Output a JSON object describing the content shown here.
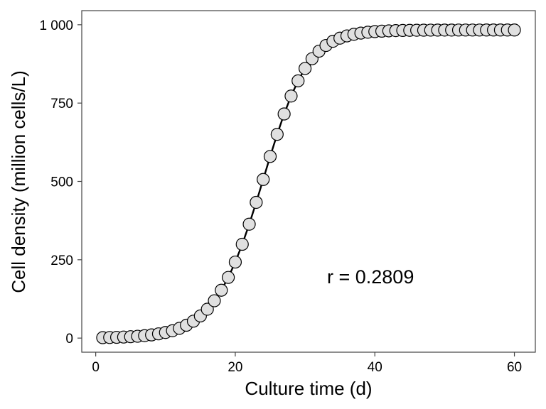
{
  "chart_data": {
    "type": "scatter",
    "xlabel": "Culture time (d)",
    "ylabel": "Cell density (million cells/L)",
    "xlim": [
      -2,
      63
    ],
    "ylim": [
      -45,
      1045
    ],
    "x_ticks": [
      0,
      20,
      40,
      60
    ],
    "y_ticks": [
      0,
      250,
      500,
      750,
      1000
    ],
    "x_tick_labels": [
      "0",
      "20",
      "40",
      "60"
    ],
    "y_tick_labels": [
      "0",
      "250",
      "500",
      "750",
      "1 000"
    ],
    "grid": false,
    "legend": "none",
    "annotation": "r = 0.2809",
    "colors": {
      "marker_fill": "#e0e0e0",
      "marker_edge": "#000000",
      "line": "#000000"
    },
    "series": [
      {
        "marker": "circle",
        "has_fit_line": true,
        "x": [
          1,
          2,
          3,
          4,
          5,
          6,
          7,
          8,
          9,
          10,
          11,
          12,
          13,
          14,
          15,
          16,
          17,
          18,
          19,
          20,
          21,
          22,
          23,
          24,
          25,
          26,
          27,
          28,
          29,
          30,
          31,
          32,
          33,
          34,
          35,
          36,
          37,
          38,
          39,
          40,
          41,
          42,
          43,
          44,
          45,
          46,
          47,
          48,
          49,
          50,
          51,
          52,
          53,
          54,
          55,
          56,
          57,
          58,
          59,
          60
        ],
        "y": [
          1.4,
          1.9,
          2.5,
          3.3,
          4.4,
          5.8,
          7.7,
          10.2,
          13.5,
          17.9,
          23.6,
          31.2,
          41.1,
          54.0,
          70.7,
          92.1,
          119.2,
          152.8,
          193.7,
          242.6,
          299.4,
          363.5,
          433.2,
          506.2,
          579.7,
          650.2,
          715.2,
          772.5,
          821.0,
          860.4,
          891.6,
          915.7,
          933.8,
          947.3,
          957.2,
          964.4,
          969.7,
          973.4,
          976.2,
          978.1,
          979.5,
          980.5,
          981.3,
          981.8,
          982.2,
          982.4,
          982.6,
          982.8,
          982.9,
          983.0,
          983.0,
          983.1,
          983.1,
          983.1,
          983.1,
          983.2,
          983.2,
          983.2,
          983.2,
          983.2
        ]
      }
    ]
  }
}
